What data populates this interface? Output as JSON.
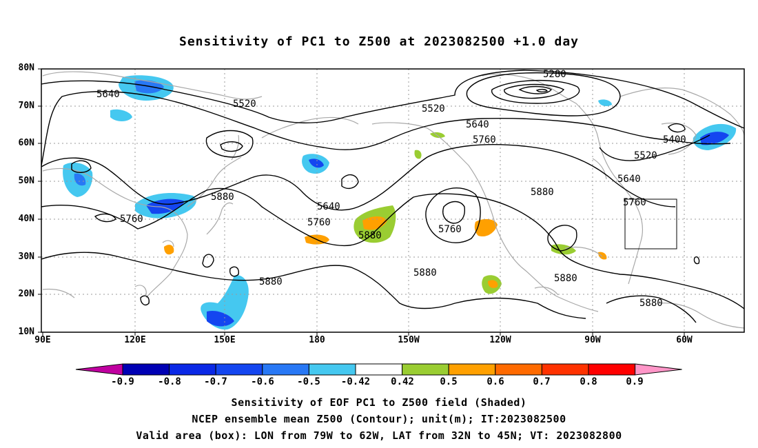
{
  "title": "Sensitivity of PC1 to Z500 at 2023082500 +1.0 day",
  "map": {
    "lat_labels": [
      "80N",
      "70N",
      "60N",
      "50N",
      "40N",
      "30N",
      "20N",
      "10N"
    ],
    "lon_labels": [
      "90E",
      "120E",
      "150E",
      "180",
      "150W",
      "120W",
      "90W",
      "60W"
    ],
    "contour_labels": [
      {
        "text": "5640"
      },
      {
        "text": "5520"
      },
      {
        "text": "5280"
      },
      {
        "text": "5520"
      },
      {
        "text": "5640"
      },
      {
        "text": "5760"
      },
      {
        "text": "5400"
      },
      {
        "text": "5520"
      },
      {
        "text": "5640"
      },
      {
        "text": "5760"
      },
      {
        "text": "5880"
      },
      {
        "text": "5760"
      },
      {
        "text": "5880"
      },
      {
        "text": "5640"
      },
      {
        "text": "5760"
      },
      {
        "text": "5880"
      },
      {
        "text": "5760"
      },
      {
        "text": "5880"
      },
      {
        "text": "5880"
      },
      {
        "text": "5880"
      },
      {
        "text": "5880"
      }
    ],
    "valid_box": {
      "lon_from": "79W",
      "lon_to": "62W",
      "lat_from": "32N",
      "lat_to": "45N"
    }
  },
  "colorbar": {
    "labels": [
      "-0.9",
      "-0.8",
      "-0.7",
      "-0.6",
      "-0.5",
      "-0.42",
      "0.42",
      "0.5",
      "0.6",
      "0.7",
      "0.8",
      "0.9"
    ],
    "colors": [
      "#c000a0",
      "#0000b4",
      "#0a28e6",
      "#1446f0",
      "#2878f5",
      "#45c8f0",
      "#ffffff",
      "#9acd32",
      "#ffa000",
      "#ff6a00",
      "#ff3200",
      "#ff0000",
      "#ff96c8"
    ]
  },
  "captions": [
    "Sensitivity of EOF PC1 to Z500 field (Shaded)",
    "NCEP ensemble mean Z500 (Contour); unit(m); IT:2023082500",
    "Valid area (box): LON from 79W to 62W, LAT from 32N to 45N; VT: 2023082800"
  ]
}
